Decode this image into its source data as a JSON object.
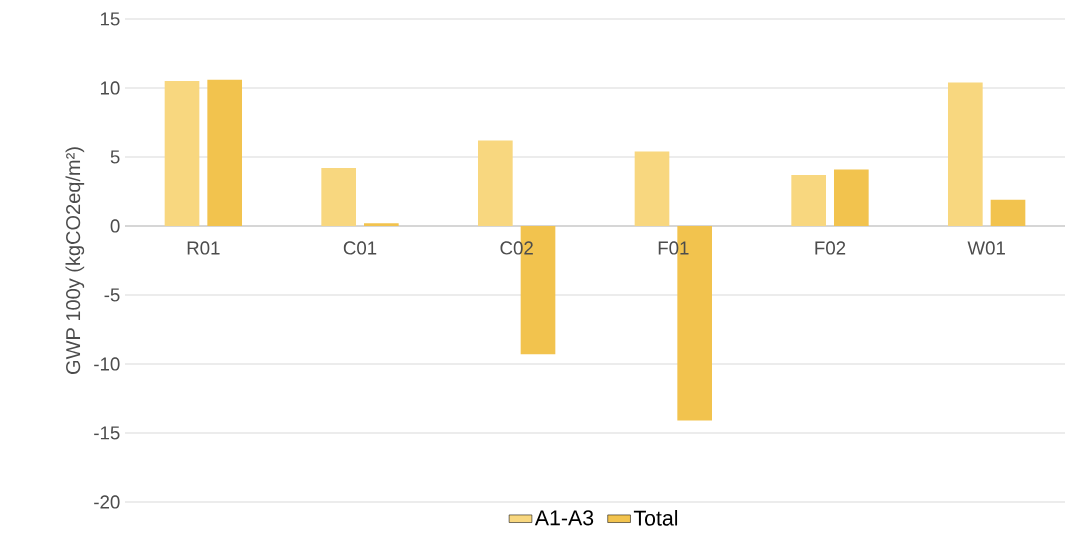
{
  "chart_data": {
    "type": "bar",
    "ylabel": "GWP 100y (kgCO2eq/m²)",
    "categories": [
      "R01",
      "C01",
      "C02",
      "F01",
      "F02",
      "W01"
    ],
    "series": [
      {
        "name": "A1-A3",
        "color": "#f8d77f",
        "values": [
          10.5,
          4.2,
          6.2,
          5.4,
          3.7,
          10.4
        ]
      },
      {
        "name": "Total",
        "color": "#f2c34e",
        "values": [
          10.6,
          0.2,
          -9.3,
          -14.1,
          4.1,
          1.9
        ]
      }
    ],
    "ylim": [
      -20,
      15
    ],
    "yticks": [
      -20,
      -15,
      -10,
      -5,
      0,
      5,
      10,
      15
    ],
    "grid": "y",
    "legend": "bottom"
  }
}
